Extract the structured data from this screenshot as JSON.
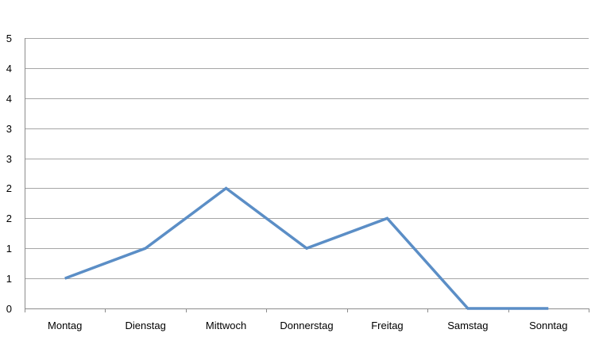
{
  "chart_data": {
    "type": "line",
    "categories": [
      "Montag",
      "Dienstag",
      "Mittwoch",
      "Donnerstag",
      "Freitag",
      "Samstag",
      "Sonntag"
    ],
    "series": [
      {
        "values": [
          0.5,
          1.0,
          2.0,
          1.0,
          1.5,
          0.0,
          0.0
        ],
        "color": "#5b8ec6"
      }
    ],
    "y_ticks": [
      0,
      0.5,
      1.0,
      1.5,
      2.0,
      2.5,
      3.0,
      3.5,
      4.0,
      4.5
    ],
    "y_tick_labels": [
      "0",
      "1",
      "1",
      "2",
      "2",
      "3",
      "3",
      "4",
      "4",
      "5"
    ],
    "ylim": [
      0,
      4.5
    ],
    "grid": true,
    "legend": "none"
  }
}
